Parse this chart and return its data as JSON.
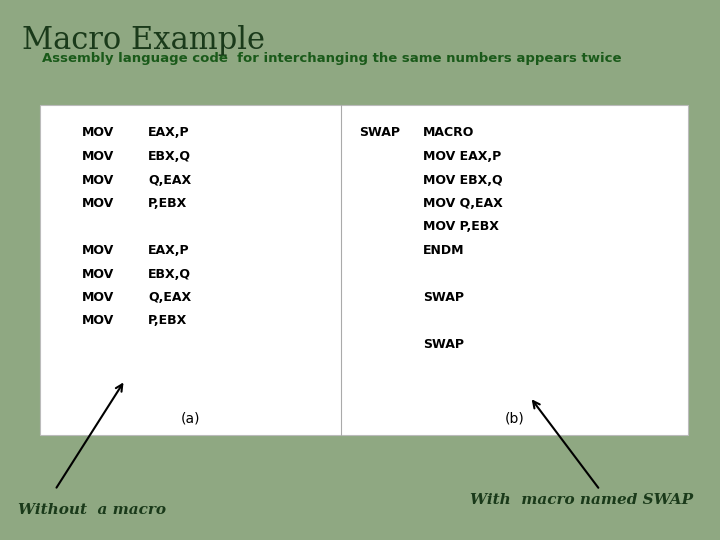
{
  "title": "Macro Example",
  "subtitle": "Assembly language code  for interchanging the same numbers appears twice",
  "bg_color": "#8fA882",
  "box_bg": "#ffffff",
  "title_color": "#1a3a1a",
  "subtitle_color": "#1a5a1a",
  "title_fontsize": 22,
  "subtitle_fontsize": 9.5,
  "label_without": "Without  a macro",
  "label_with": "With  macro named SWAP",
  "code_fontsize": 9,
  "label_fontsize": 11,
  "label_a": "(a)",
  "label_b": "(b)"
}
